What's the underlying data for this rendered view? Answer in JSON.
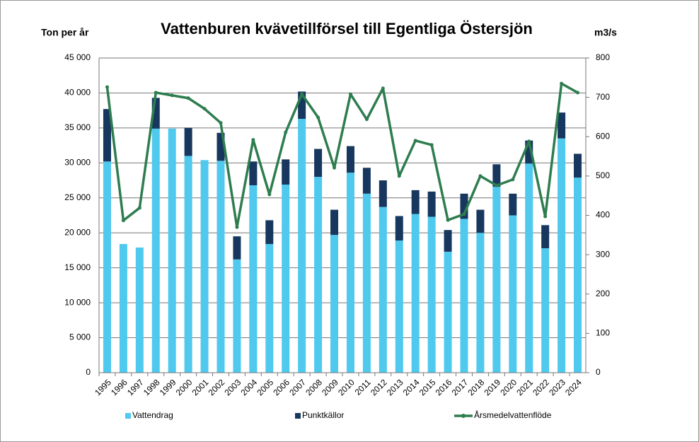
{
  "chart_data": {
    "type": "bar",
    "stacked": true,
    "title": "Vattenburen kvävetillförsel till Egentliga Östersjön",
    "y_label": "Ton per år",
    "y2_label": "m3/s",
    "categories": [
      "1995",
      "1996",
      "1997",
      "1998",
      "1999",
      "2000",
      "2001",
      "2002",
      "2003",
      "2004",
      "2005",
      "2006",
      "2007",
      "2008",
      "2009",
      "2010",
      "2011",
      "2012",
      "2013",
      "2014",
      "2015",
      "2016",
      "2017",
      "2018",
      "2019",
      "2020",
      "2021",
      "2022",
      "2023",
      "2024"
    ],
    "series": [
      {
        "name": "Vattendrag",
        "type": "bar",
        "color": "#4fc9ee",
        "values": [
          30200,
          18400,
          17900,
          34900,
          34900,
          31000,
          30400,
          30300,
          16200,
          26800,
          18400,
          26900,
          36300,
          28000,
          19700,
          28600,
          25600,
          23700,
          18900,
          22700,
          22300,
          17300,
          22000,
          20000,
          26600,
          22500,
          29900,
          17800,
          33500,
          27900
        ]
      },
      {
        "name": "Punktkällor",
        "type": "bar",
        "color": "#17375e",
        "values": [
          7500,
          0,
          0,
          4400,
          0,
          4000,
          0,
          4000,
          3300,
          3400,
          3400,
          3600,
          3900,
          4000,
          3600,
          3800,
          3700,
          3800,
          3500,
          3400,
          3600,
          3100,
          3600,
          3300,
          3200,
          3100,
          3300,
          3300,
          3700,
          3400
        ]
      },
      {
        "name": "Årsmedelvattenflöde",
        "type": "line",
        "axis": "y2",
        "color": "#2e7d4f",
        "values": [
          726,
          387,
          419,
          712,
          705,
          698,
          671,
          635,
          370,
          592,
          453,
          611,
          708,
          649,
          521,
          708,
          644,
          723,
          500,
          590,
          579,
          388,
          403,
          500,
          476,
          491,
          588,
          397,
          735,
          712
        ]
      }
    ],
    "ylim": [
      0,
      45000
    ],
    "yticks": [
      0,
      {
        "value": 5000,
        "label": "5 000"
      },
      {
        "value": 10000,
        "label": "10 000"
      },
      {
        "value": 15000,
        "label": "15 000"
      },
      {
        "value": 20000,
        "label": "20 000"
      },
      {
        "value": 25000,
        "label": "25 000"
      },
      {
        "value": 30000,
        "label": "30 000"
      },
      {
        "value": 35000,
        "label": "35 000"
      },
      {
        "value": 40000,
        "label": "40 000"
      },
      {
        "value": 45000,
        "label": "45 000"
      }
    ],
    "y2lim": [
      0,
      800
    ],
    "y2ticks": [
      0,
      100,
      200,
      300,
      400,
      500,
      600,
      700,
      800
    ],
    "grid": true,
    "legend": "bottom"
  }
}
